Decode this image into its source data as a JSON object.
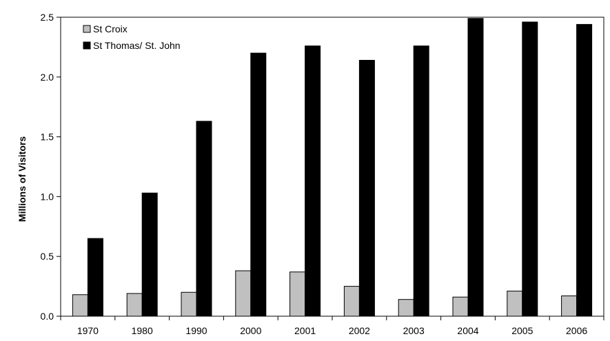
{
  "chart_data": {
    "type": "bar",
    "title": "",
    "xlabel": "",
    "ylabel": "Millions of Visitors",
    "categories": [
      "1970",
      "1980",
      "1990",
      "2000",
      "2001",
      "2002",
      "2003",
      "2004",
      "2005",
      "2006"
    ],
    "series": [
      {
        "name": "St Croix",
        "color": "#c0c0c0",
        "values": [
          0.18,
          0.19,
          0.2,
          0.38,
          0.37,
          0.25,
          0.14,
          0.16,
          0.21,
          0.17
        ]
      },
      {
        "name": "St Thomas/ St. John",
        "color": "#000000",
        "values": [
          0.65,
          1.03,
          1.63,
          2.2,
          2.26,
          2.14,
          2.26,
          2.49,
          2.46,
          2.44
        ]
      }
    ],
    "ylim": [
      0,
      2.5
    ],
    "yticks": [
      "0.0",
      "0.5",
      "1.0",
      "1.5",
      "2.0",
      "2.5"
    ],
    "grid": false,
    "legend_position": "top-left"
  }
}
